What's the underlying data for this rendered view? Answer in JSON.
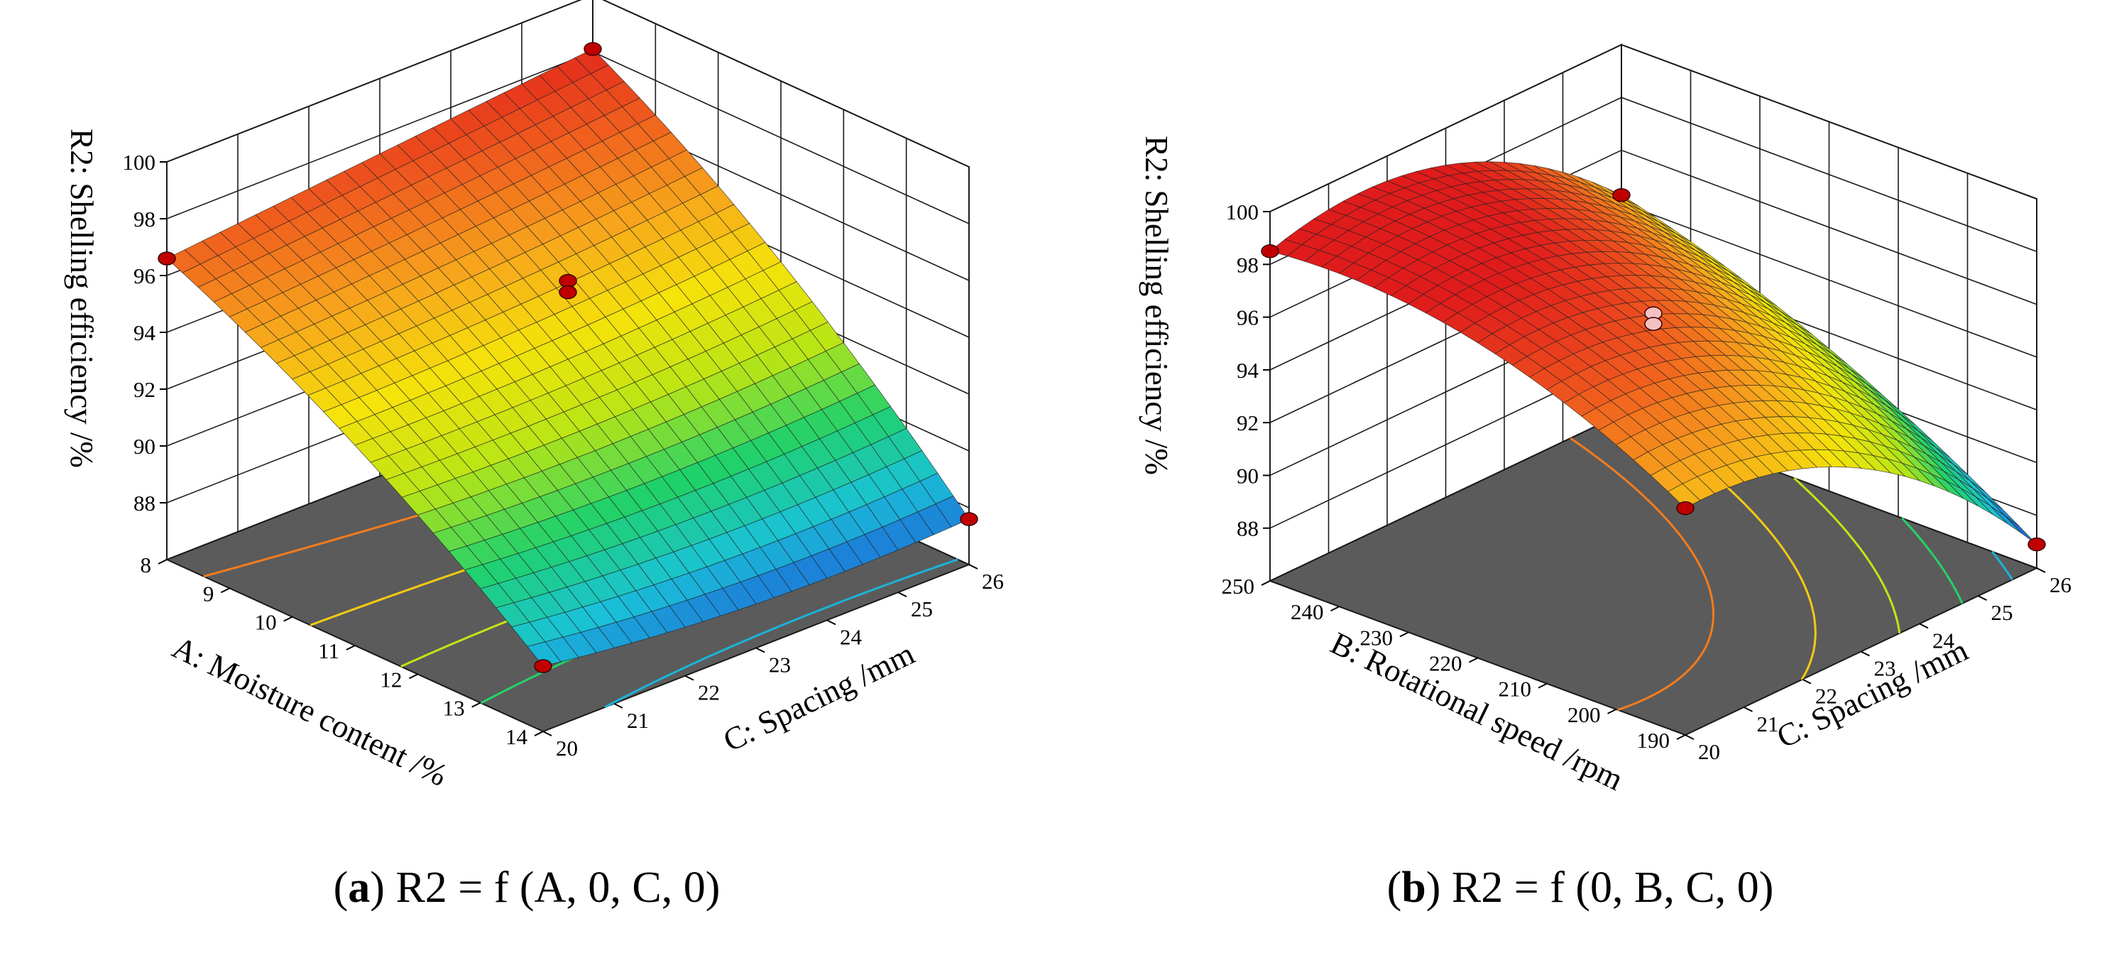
{
  "colors": {
    "floor": "#5b5b5b",
    "grid": "#1a1a1a",
    "point": "#c00000",
    "point_light": "#f4c2c2",
    "colormap": [
      "#1e4fd8",
      "#1ac2d8",
      "#20d16b",
      "#b9e515",
      "#f5e30a",
      "#f7a41c",
      "#ef5a1e",
      "#e01b1b"
    ]
  },
  "chart_data": [
    {
      "type": "surface3d",
      "panel": "a",
      "caption_label": "a",
      "caption_formula": "R2 = f (A, 0, C, 0)",
      "zlabel": "R2: Shelling efficiency /%",
      "xlabel": "A: Moisture content /%",
      "ylabel": "C: Spacing /mm",
      "x_ticks": [
        "8",
        "9",
        "10",
        "11",
        "12",
        "13",
        "14"
      ],
      "y_ticks": [
        "20",
        "21",
        "22",
        "23",
        "24",
        "25",
        "26"
      ],
      "z_ticks": [
        "88",
        "90",
        "92",
        "94",
        "96",
        "98",
        "100"
      ],
      "xlim": [
        8,
        14
      ],
      "ylim": [
        20,
        26
      ],
      "zlim": [
        86,
        100
      ],
      "corner_values": {
        "x_min_y_min": 96.6,
        "x_min_y_max": 98.1,
        "x_max_y_min": 88.3,
        "x_max_y_max": 87.6
      },
      "design_points": [
        {
          "x": 8,
          "y": 20,
          "z": 96.6
        },
        {
          "x": 8,
          "y": 26,
          "z": 98.1
        },
        {
          "x": 11,
          "y": 23,
          "z": 95.9
        },
        {
          "x": 11,
          "y": 23,
          "z": 95.5
        },
        {
          "x": 14,
          "y": 20,
          "z": 88.3
        },
        {
          "x": 14,
          "y": 26,
          "z": 87.6
        }
      ],
      "contour_levels": [
        96,
        94,
        92,
        90,
        88
      ]
    },
    {
      "type": "surface3d",
      "panel": "b",
      "caption_label": "b",
      "caption_formula": "R2 = f (0, B, C, 0)",
      "zlabel": "R2: Shelling efficiency /%",
      "xlabel": "B: Rotational speed /rpm",
      "ylabel": "C: Spacing /mm",
      "x_ticks": [
        "250",
        "240",
        "230",
        "220",
        "210",
        "200",
        "190"
      ],
      "y_ticks": [
        "20",
        "21",
        "22",
        "23",
        "24",
        "25",
        "26"
      ],
      "z_ticks": [
        "88",
        "90",
        "92",
        "94",
        "96",
        "98",
        "100"
      ],
      "xlim": [
        250,
        190
      ],
      "ylim": [
        20,
        26
      ],
      "zlim": [
        86,
        100
      ],
      "corner_values": {
        "x_min_y_min": 98.5,
        "x_min_y_max": 94.3,
        "x_max_y_min": 94.6,
        "x_max_y_max": 86.9
      },
      "design_points": [
        {
          "x": 250,
          "y": 20,
          "z": 98.5
        },
        {
          "x": 250,
          "y": 26,
          "z": 94.3
        },
        {
          "x": 220,
          "y": 23,
          "z": 95.9
        },
        {
          "x": 220,
          "y": 23,
          "z": 95.5
        },
        {
          "x": 190,
          "y": 20,
          "z": 94.6
        },
        {
          "x": 190,
          "y": 26,
          "z": 86.9
        }
      ],
      "contour_levels": [
        96,
        94,
        92,
        90,
        88
      ]
    }
  ]
}
